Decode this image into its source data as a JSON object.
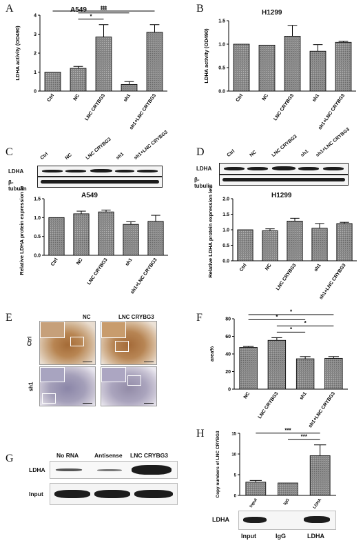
{
  "panels": {
    "A": {
      "letter": "A",
      "title": "A549"
    },
    "B": {
      "letter": "B",
      "title": "H1299"
    },
    "C": {
      "letter": "C",
      "chart_title": "A549"
    },
    "D": {
      "letter": "D",
      "chart_title": "H1299"
    },
    "E": {
      "letter": "E"
    },
    "F": {
      "letter": "F"
    },
    "G": {
      "letter": "G"
    },
    "H": {
      "letter": "H"
    }
  },
  "western_C": {
    "lanes": [
      "Ctrl",
      "NC",
      "LNC CRYBG3",
      "sh1",
      "sh1+LNC CRYBG3"
    ],
    "rows": [
      "LDHA",
      "β-tubulin"
    ]
  },
  "western_D": {
    "lanes": [
      "Ctrl",
      "NC",
      "LNC CRYBG3",
      "sh1",
      "sh1+LNC CRYBG3"
    ],
    "rows": [
      "LDHA",
      "β-tubulin"
    ]
  },
  "ihc": {
    "cols": [
      "NC",
      "LNC CRYBG3"
    ],
    "rows": [
      "Ctrl",
      "sh1"
    ]
  },
  "rip": {
    "lanes": [
      "No RNA",
      "Antisense",
      "LNC CRYBG3"
    ],
    "rows": [
      "LDHA",
      "Input"
    ]
  },
  "rip_h": {
    "row": "LDHA",
    "lanes": [
      "Input",
      "IgG",
      "LDHA"
    ]
  },
  "chart_data": [
    {
      "id": "A",
      "type": "bar",
      "categories": [
        "Ctrl",
        "NC",
        "LNC CRYBG3",
        "sh1",
        "sh1+LNC CRYBG3"
      ],
      "values": [
        1.0,
        1.2,
        2.85,
        0.35,
        3.1
      ],
      "errors": [
        0,
        0.1,
        0.65,
        0.15,
        0.4
      ],
      "ylabel": "LDHA activity (OD490)",
      "ylim": [
        0,
        4
      ],
      "yticks": [
        0,
        1,
        2,
        3,
        4
      ],
      "sig": [
        {
          "from": 1,
          "to": 2,
          "label": "*"
        },
        {
          "from": 1,
          "to": 3,
          "label": "***"
        },
        {
          "from": 0,
          "to": 4,
          "label": "***"
        }
      ]
    },
    {
      "id": "B",
      "type": "bar",
      "categories": [
        "Ctrl",
        "NC",
        "LNC CRYBG3",
        "sh1",
        "sh1+LNC CRYBG3"
      ],
      "values": [
        1.0,
        0.98,
        1.17,
        0.85,
        1.04
      ],
      "errors": [
        0,
        0,
        0.23,
        0.14,
        0.02
      ],
      "ylabel": "LDHA activity (OD490)",
      "ylim": [
        0,
        1.5
      ],
      "yticks": [
        "0.0",
        "0.5",
        "1.0",
        "1.5"
      ],
      "sig": []
    },
    {
      "id": "C",
      "type": "bar",
      "categories": [
        "Ctrl",
        "NC",
        "LNC CRYBG3",
        "sh1",
        "sh1+LNC CRYBG3"
      ],
      "values": [
        1.0,
        1.1,
        1.15,
        0.82,
        0.9
      ],
      "errors": [
        0,
        0.07,
        0.05,
        0.07,
        0.16
      ],
      "ylabel": "Relative LDHA protein expression level",
      "ylim": [
        0,
        1.5
      ],
      "yticks": [
        "0.0",
        "0.5",
        "1.0",
        "1.5"
      ],
      "sig": []
    },
    {
      "id": "D",
      "type": "bar",
      "categories": [
        "Ctrl",
        "NC",
        "LNC CRYBG3",
        "sh1",
        "sh1+LNC CRYBG3"
      ],
      "values": [
        1.0,
        0.97,
        1.28,
        1.05,
        1.2
      ],
      "errors": [
        0,
        0.06,
        0.09,
        0.15,
        0.04
      ],
      "ylabel": "Relative LDHA protein expression level",
      "ylim": [
        0,
        2.0
      ],
      "yticks": [
        "0.0",
        "0.5",
        "1.0",
        "1.5",
        "2.0"
      ],
      "sig": []
    },
    {
      "id": "F",
      "type": "bar",
      "categories": [
        "NC",
        "LNC CRYBG3",
        "sh1",
        "sh1+LNC CRYBG3"
      ],
      "values": [
        47.5,
        55.5,
        34.5,
        35
      ],
      "errors": [
        1,
        3,
        2.5,
        2
      ],
      "ylabel": "area%",
      "ylim": [
        0,
        80
      ],
      "yticks": [
        0,
        20,
        40,
        60,
        80
      ],
      "sig": [
        {
          "from": 1,
          "to": 2,
          "label": "*"
        },
        {
          "from": 1,
          "to": 3,
          "label": "*"
        },
        {
          "from": 0,
          "to": 2,
          "label": "*"
        },
        {
          "from": 0,
          "to": 3,
          "label": "*"
        }
      ]
    },
    {
      "id": "H",
      "type": "bar",
      "categories": [
        "Input",
        "IgG",
        "LDHA"
      ],
      "values": [
        3.2,
        3.0,
        9.6
      ],
      "errors": [
        0.4,
        0,
        2.6
      ],
      "ylabel": "Copy numbers of LNC CRYBG3",
      "ylim": [
        0,
        15
      ],
      "yticks": [
        0,
        5,
        10,
        15
      ],
      "sig": [
        {
          "from": 1,
          "to": 2,
          "label": "***"
        },
        {
          "from": 0,
          "to": 2,
          "label": "***"
        }
      ]
    }
  ]
}
